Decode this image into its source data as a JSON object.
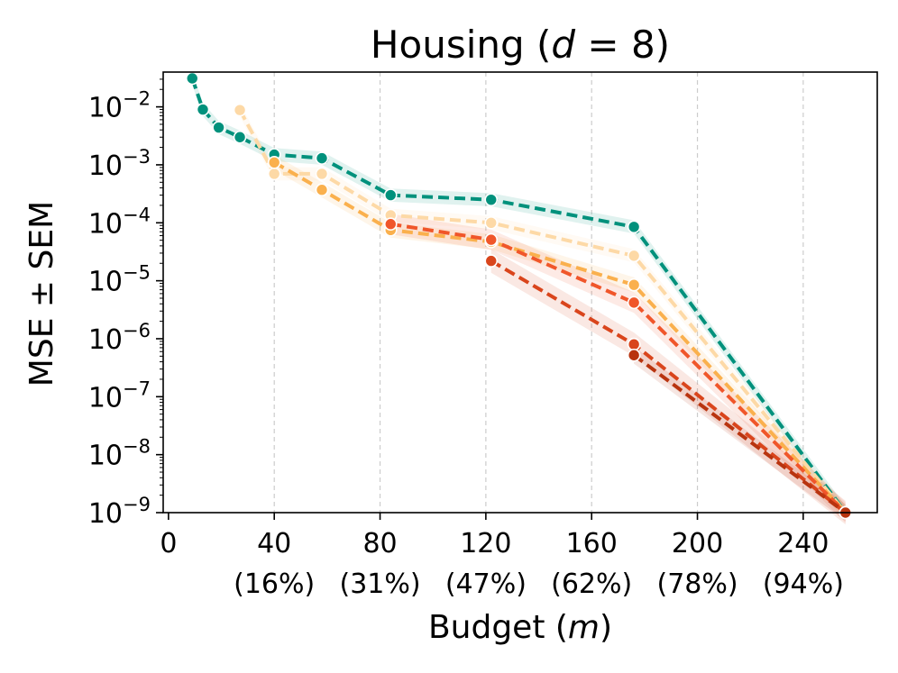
{
  "chart_data": {
    "type": "line",
    "title_pre": "Housing (",
    "title_var": "d",
    "title_post": " = 8)",
    "xlabel_pre": "Budget (",
    "xlabel_var": "m",
    "xlabel_post": ")",
    "ylabel": "MSE ± SEM",
    "xlim": [
      -2,
      268
    ],
    "ylim_log10": [
      -9,
      -1.4
    ],
    "x_ticks": [
      0,
      40,
      80,
      120,
      160,
      200,
      240
    ],
    "x_tick_labels": [
      "0",
      "40",
      "80",
      "120",
      "160",
      "200",
      "240"
    ],
    "x_tick_percent_labels": [
      "",
      "(16%)",
      "(31%)",
      "(47%)",
      "(62%)",
      "(78%)",
      "(94%)"
    ],
    "y_tick_exponents": [
      -9,
      -8,
      -7,
      -6,
      -5,
      -4,
      -3,
      -2
    ],
    "y_tick_base": "10",
    "y_tick_exp_labels": [
      "−9",
      "−8",
      "−7",
      "−6",
      "−5",
      "−4",
      "−3",
      "−2"
    ],
    "vertical_gridlines_at": [
      40,
      80,
      120,
      160,
      200,
      240
    ],
    "series": [
      {
        "name": "series-teal",
        "color": "#00917C",
        "points": [
          [
            9,
            0.031
          ],
          [
            13,
            0.009
          ],
          [
            19,
            0.0044
          ],
          [
            27,
            0.003
          ],
          [
            40,
            0.0015
          ],
          [
            58,
            0.0013
          ],
          [
            84,
            0.0003
          ],
          [
            122,
            0.00025
          ],
          [
            176,
            8.5e-05
          ],
          [
            256,
            1e-09
          ]
        ],
        "band_factor": 1.3
      },
      {
        "name": "series-light-peach",
        "color": "#FDD9A6",
        "points": [
          [
            27,
            0.0088
          ],
          [
            40,
            0.0007
          ],
          [
            58,
            0.0007
          ],
          [
            84,
            0.000135
          ],
          [
            122,
            0.0001
          ],
          [
            176,
            2.7e-05
          ],
          [
            256,
            1e-09
          ]
        ],
        "band_factor": 1.3
      },
      {
        "name": "series-orange",
        "color": "#FAB04D",
        "points": [
          [
            40,
            0.0011
          ],
          [
            58,
            0.00037
          ],
          [
            84,
            7.5e-05
          ],
          [
            122,
            4.7e-05
          ],
          [
            176,
            8.5e-06
          ],
          [
            256,
            1e-09
          ]
        ],
        "band_factor": 1.35
      },
      {
        "name": "series-red-orange",
        "color": "#F0562A",
        "points": [
          [
            84,
            9.5e-05
          ],
          [
            122,
            5.1e-05
          ],
          [
            176,
            4.2e-06
          ],
          [
            256,
            1e-09
          ]
        ],
        "band_factor": 1.5
      },
      {
        "name": "series-red",
        "color": "#D9451C",
        "points": [
          [
            122,
            2.2e-05
          ],
          [
            176,
            8e-07
          ],
          [
            256,
            1e-09
          ]
        ],
        "band_factor": 1.6
      },
      {
        "name": "series-dark-red",
        "color": "#B8340F",
        "points": [
          [
            176,
            5.2e-07
          ],
          [
            256,
            1e-09
          ]
        ],
        "band_factor": 1.4
      }
    ]
  }
}
